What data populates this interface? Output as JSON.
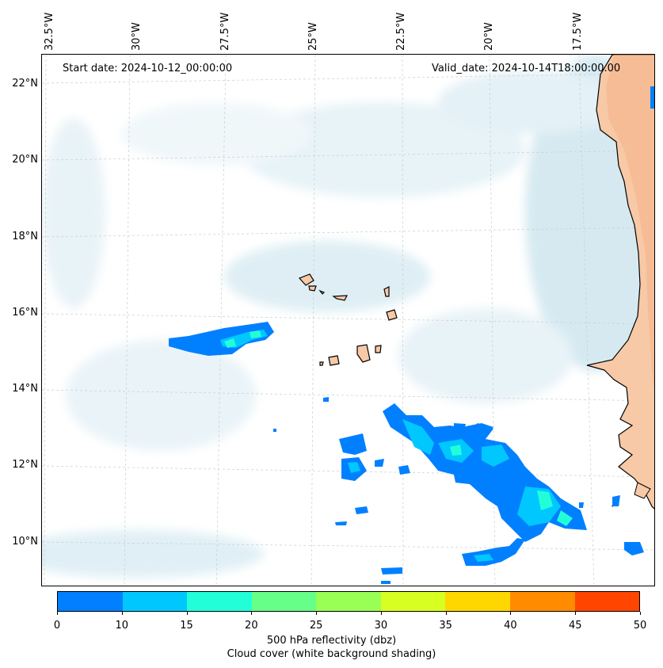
{
  "map": {
    "start_date": "Start date: 2024-10-12_00:00:00",
    "valid_date": "Valid_date: 2024-10-14T18:00:00.00",
    "lon_labels": [
      "32.5°W",
      "30°W",
      "27.5°W",
      "25°W",
      "22.5°W",
      "20°W",
      "17.5°W"
    ],
    "lat_labels": [
      "22°N",
      "20°N",
      "18°N",
      "16°N",
      "14°N",
      "12°N",
      "10°N"
    ]
  },
  "colorbar": {
    "ticks": [
      "0",
      "10",
      "15",
      "20",
      "25",
      "30",
      "35",
      "40",
      "45",
      "50"
    ],
    "colors": [
      "#0080ff",
      "#00c8ff",
      "#22ffd8",
      "#66ff88",
      "#99ff55",
      "#d8ff22",
      "#ffd700",
      "#ff8c00",
      "#ff4500"
    ],
    "label_line1": "500 hPa reflectivity (dbz)",
    "label_line2": "Cloud cover (white background shading)"
  },
  "colors": {
    "land": "#f7c9a6",
    "cloud": "#d6eaf2",
    "coast": "#000000"
  }
}
